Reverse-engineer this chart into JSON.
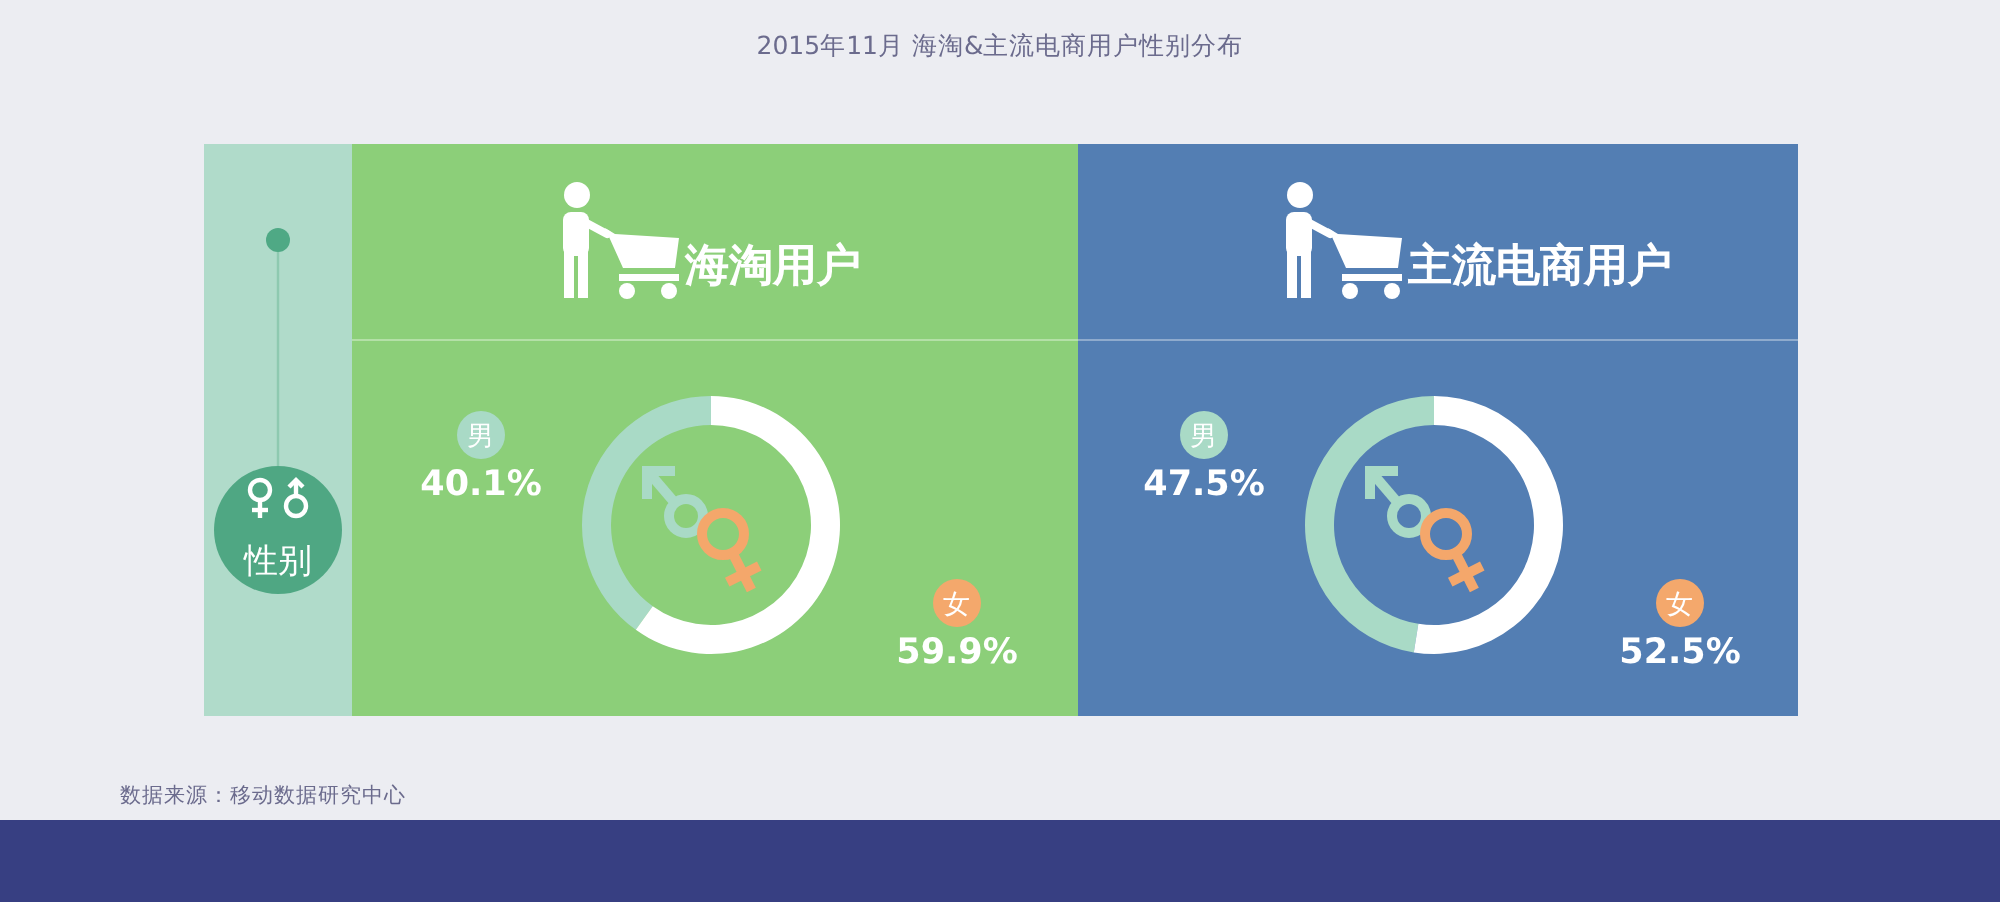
{
  "chart_data": [
    {
      "type": "other",
      "title": "2015年11月 海淘&主流电商用户性别分布",
      "annotations": [
        "性别",
        "数据来源：移动数据研究中心"
      ]
    },
    {
      "type": "donut",
      "title": "海淘用户",
      "categories": [
        "男",
        "女"
      ],
      "values": [
        40.1,
        59.9
      ],
      "colors": [
        "#a9dac6",
        "#ffffff"
      ],
      "value_labels": [
        "40.1%",
        "59.9%"
      ]
    },
    {
      "type": "donut",
      "title": "主流电商用户",
      "categories": [
        "男",
        "女"
      ],
      "values": [
        47.5,
        52.5
      ],
      "colors": [
        "#a9dac6",
        "#ffffff"
      ],
      "value_labels": [
        "47.5%",
        "52.5%"
      ]
    }
  ]
}
